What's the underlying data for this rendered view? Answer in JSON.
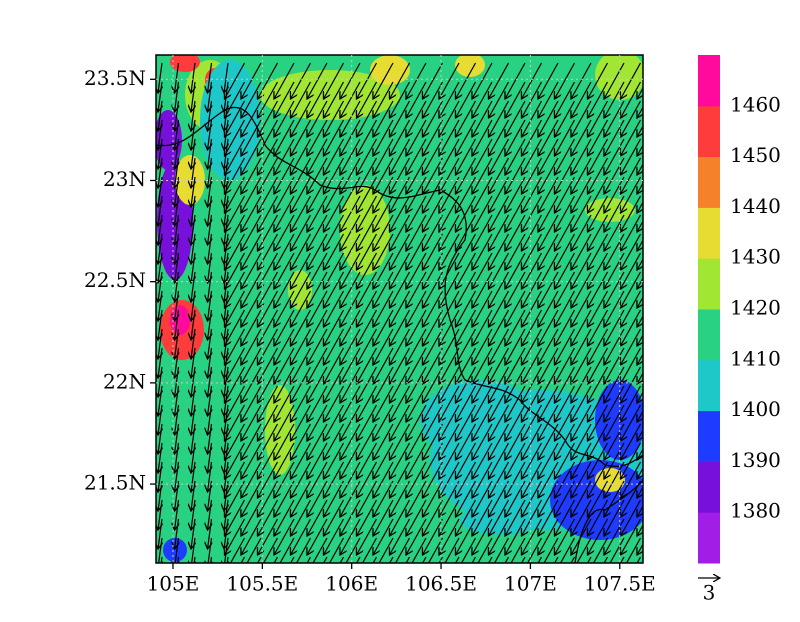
{
  "map": {
    "xlim": [
      104.905,
      107.63
    ],
    "ylim": [
      21.11,
      23.62
    ],
    "xticks": [
      {
        "value": 105,
        "label": "105E"
      },
      {
        "value": 105.5,
        "label": "105.5E"
      },
      {
        "value": 106,
        "label": "106E"
      },
      {
        "value": 106.5,
        "label": "106.5E"
      },
      {
        "value": 107,
        "label": "107E"
      },
      {
        "value": 107.5,
        "label": "107.5E"
      }
    ],
    "yticks": [
      {
        "value": 21.5,
        "label": "21.5N"
      },
      {
        "value": 22,
        "label": "22N"
      },
      {
        "value": 22.5,
        "label": "22.5N"
      },
      {
        "value": 23,
        "label": "23N"
      },
      {
        "value": 23.5,
        "label": "23.5N"
      }
    ],
    "colorbar": {
      "levels": [
        1380,
        1390,
        1400,
        1410,
        1420,
        1430,
        1440,
        1450,
        1460
      ],
      "colors": [
        "#a01ee6",
        "#7810dc",
        "#1e3cff",
        "#1ec8c8",
        "#28d282",
        "#a0e632",
        "#e6dc32",
        "#f5822a",
        "#ff3c3c",
        "#ff0a9c"
      ]
    },
    "vector_reference": 3
  }
}
